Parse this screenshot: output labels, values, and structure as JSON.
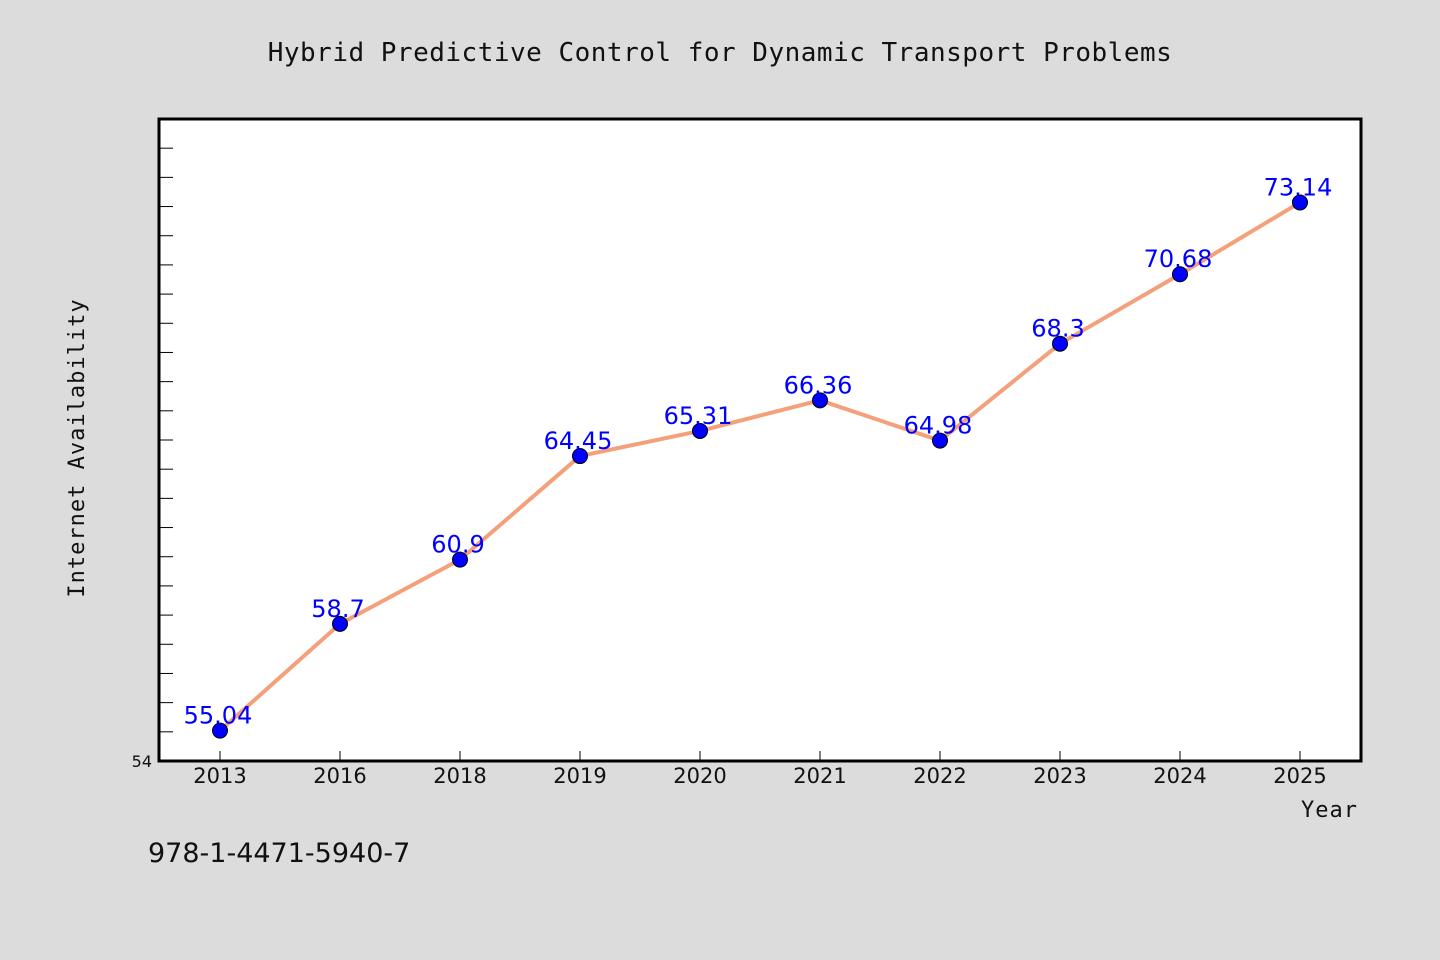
{
  "chart_data": {
    "type": "line",
    "title": "Hybrid Predictive Control for Dynamic Transport Problems",
    "xlabel": "Year",
    "ylabel": "Internet Availability",
    "categories": [
      "2013",
      "2016",
      "2018",
      "2019",
      "2020",
      "2021",
      "2022",
      "2023",
      "2024",
      "2025"
    ],
    "series": [
      {
        "values": [
          55.04,
          58.7,
          60.9,
          64.45,
          65.31,
          66.36,
          64.98,
          68.3,
          70.68,
          73.14
        ],
        "data_labels": [
          "55.04",
          "58.7",
          "60.9",
          "64.45",
          "65.31",
          "66.36",
          "64.98",
          "68.3",
          "70.68",
          "73.14"
        ]
      }
    ],
    "ylim": [
      54,
      76
    ],
    "y_tick_labels": [
      "54"
    ],
    "y_minor_step": 1,
    "grid": false,
    "legend": "none",
    "colors": {
      "line": "#f4a07a",
      "marker": "#0000ff",
      "data_label": "#0000ff",
      "background": "#dcdcdc",
      "plot_background": "#ffffff"
    }
  },
  "footer": {
    "isbn": "978-1-4471-5940-7"
  }
}
